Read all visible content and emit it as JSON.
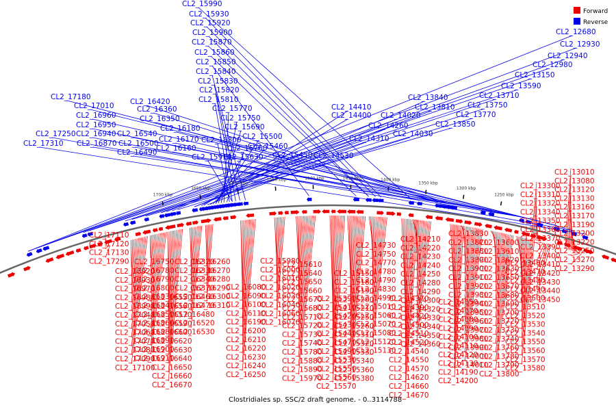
{
  "caption": "Clostridiales sp. SSC/2 draft genome. - 0..3114788",
  "legend": [
    {
      "label": "Forward",
      "color": "#ee0000"
    },
    {
      "label": "Reverse",
      "color": "#0000ee"
    }
  ],
  "colors": {
    "forward": "#ee0000",
    "reverse": "#0000ee",
    "backbone": "#666666",
    "tick": "#000000"
  },
  "scale_ticks": [
    "1250 kbp",
    "1300 kbp",
    "1350 kbp",
    "1400 kbp",
    "1450 kbp",
    "1500 kbp",
    "1550 kbp",
    "1600 kbp",
    "1650 kbp",
    "1700 kbp"
  ],
  "reverse_labels": [
    "CL2_12680",
    "CL2_12930",
    "CL2_12940",
    "CL2_12980",
    "CL2_13150",
    "CL2_13590",
    "CL2_13710",
    "CL2_13750",
    "CL2_13770",
    "CL2_13850",
    "CL2_13810",
    "CL2_13840",
    "CL2_14020",
    "CL2_14030",
    "CL2_14260",
    "CL2_14310",
    "CL2_14400",
    "CL2_14410",
    "CL2_14530",
    "CL2_15450",
    "CL2_15460",
    "CL2_15500",
    "CL2_15630",
    "CL2_15690",
    "CL2_15750",
    "CL2_15770",
    "CL2_15760",
    "CL2_15800",
    "CL2_15910",
    "CL2_15810",
    "CL2_15820",
    "CL2_15830",
    "CL2_15840",
    "CL2_15850",
    "CL2_15860",
    "CL2_15870",
    "CL2_15900",
    "CL2_15920",
    "CL2_15930",
    "CL2_15990",
    "CL2_16160",
    "CL2_16170",
    "CL2_16180",
    "CL2_16350",
    "CL2_16360",
    "CL2_16420",
    "CL2_16490",
    "CL2_16500",
    "CL2_16540",
    "CL2_16870",
    "CL2_16940",
    "CL2_16950",
    "CL2_16960",
    "CL2_17010",
    "CL2_17180",
    "CL2_17250",
    "CL2_17310"
  ],
  "forward_labels": [
    "CL2_13010",
    "CL2_13080",
    "CL2_13120",
    "CL2_13130",
    "CL2_13160",
    "CL2_13170",
    "CL2_13190",
    "CL2_13200",
    "CL2_13220",
    "CL2_13250",
    "CL2_13270",
    "CL2_13290",
    "CL2_13300",
    "CL2_13310",
    "CL2_13320",
    "CL2_13340",
    "CL2_13350",
    "CL2_13360",
    "CL2_13370",
    "CL2_13390",
    "CL2_13400",
    "CL2_13410",
    "CL2_13420",
    "CL2_13430",
    "CL2_13440",
    "CL2_13450",
    "CL2_13460",
    "CL2_13470",
    "CL2_13480",
    "CL2_13490",
    "CL2_13500",
    "CL2_13510",
    "CL2_13520",
    "CL2_13530",
    "CL2_13540",
    "CL2_13550",
    "CL2_13560",
    "CL2_13570",
    "CL2_13580",
    "CL2_13600",
    "CL2_13610",
    "CL2_13620",
    "CL2_13630",
    "CL2_13650",
    "CL2_13670",
    "CL2_13680",
    "CL2_13690",
    "CL2_13700",
    "CL2_13720",
    "CL2_13730",
    "CL2_13740",
    "CL2_13760",
    "CL2_13780",
    "CL2_13790",
    "CL2_13800",
    "CL2_13830",
    "CL2_13870",
    "CL2_13880",
    "CL2_13890",
    "CL2_13900",
    "CL2_13910",
    "CL2_13920",
    "CL2_13930",
    "CL2_13940",
    "CL2_13950",
    "CL2_13960",
    "CL2_13970",
    "CL2_13980",
    "CL2_13990",
    "CL2_14000",
    "CL2_14010",
    "CL2_14050",
    "CL2_14070",
    "CL2_14080",
    "CL2_14090",
    "CL2_14100",
    "CL2_14110",
    "CL2_14120",
    "CL2_14130",
    "CL2_14190",
    "CL2_14200",
    "CL2_14210",
    "CL2_14220",
    "CL2_14230",
    "CL2_14240",
    "CL2_14250",
    "CL2_14280",
    "CL2_14290",
    "CL2_14300",
    "CL2_14320",
    "CL2_14330",
    "CL2_14340",
    "CL2_14350",
    "CL2_14360",
    "CL2_14370",
    "CL2_14390",
    "CL2_14420",
    "CL2_14500",
    "CL2_14510",
    "CL2_14520",
    "CL2_14540",
    "CL2_14550",
    "CL2_14570",
    "CL2_14620",
    "CL2_14660",
    "CL2_14670",
    "CL2_14730",
    "CL2_14750",
    "CL2_14770",
    "CL2_14780",
    "CL2_14790",
    "CL2_14830",
    "CL2_14990",
    "CL2_15010",
    "CL2_15060",
    "CL2_15070",
    "CL2_15080",
    "CL2_15120",
    "CL2_15130",
    "CL2_15150",
    "CL2_15180",
    "CL2_15190",
    "CL2_15200",
    "CL2_15210",
    "CL2_15250",
    "CL2_15260",
    "CL2_15310",
    "CL2_15320",
    "CL2_15330",
    "CL2_15340",
    "CL2_15360",
    "CL2_15380",
    "CL2_15390",
    "CL2_15410",
    "CL2_15420",
    "CL2_15430",
    "CL2_15440",
    "CL2_15470",
    "CL2_15490",
    "CL2_15530",
    "CL2_15550",
    "CL2_15560",
    "CL2_15570",
    "CL2_15610",
    "CL2_15640",
    "CL2_15650",
    "CL2_15660",
    "CL2_15670",
    "CL2_15680",
    "CL2_15710",
    "CL2_15720",
    "CL2_15730",
    "CL2_15740",
    "CL2_15780",
    "CL2_15880",
    "CL2_15890",
    "CL2_15970",
    "CL2_15980",
    "CL2_16000",
    "CL2_16010",
    "CL2_16020",
    "CL2_16030",
    "CL2_16040",
    "CL2_16060",
    "CL2_16070",
    "CL2_16080",
    "CL2_16090",
    "CL2_16100",
    "CL2_16110",
    "CL2_16190",
    "CL2_16200",
    "CL2_16210",
    "CL2_16220",
    "CL2_16230",
    "CL2_16240",
    "CL2_16250",
    "CL2_16260",
    "CL2_16270",
    "CL2_16280",
    "CL2_16290",
    "CL2_16300",
    "CL2_16310",
    "CL2_16320",
    "CL2_16330",
    "CL2_16340",
    "CL2_16370",
    "CL2_16460",
    "CL2_16470",
    "CL2_16480",
    "CL2_16520",
    "CL2_16530",
    "CL2_16550",
    "CL2_16560",
    "CL2_16570",
    "CL2_16590",
    "CL2_16600",
    "CL2_16620",
    "CL2_16630",
    "CL2_16640",
    "CL2_16650",
    "CL2_16660",
    "CL2_16670",
    "CL2_16750",
    "CL2_16780",
    "CL2_16790",
    "CL2_16800",
    "CL2_16830",
    "CL2_16840",
    "CL2_16850",
    "CL2_16860",
    "CL2_16880",
    "CL2_16890",
    "CL2_16900",
    "CL2_16910",
    "CL2_16920",
    "CL2_16930",
    "CL2_16970",
    "CL2_16980",
    "CL2_16990",
    "CL2_17040",
    "CL2_17050",
    "CL2_17060",
    "CL2_17070",
    "CL2_17080",
    "CL2_17090",
    "CL2_17100",
    "CL2_17110",
    "CL2_17120",
    "CL2_17130",
    "CL2_17290"
  ]
}
